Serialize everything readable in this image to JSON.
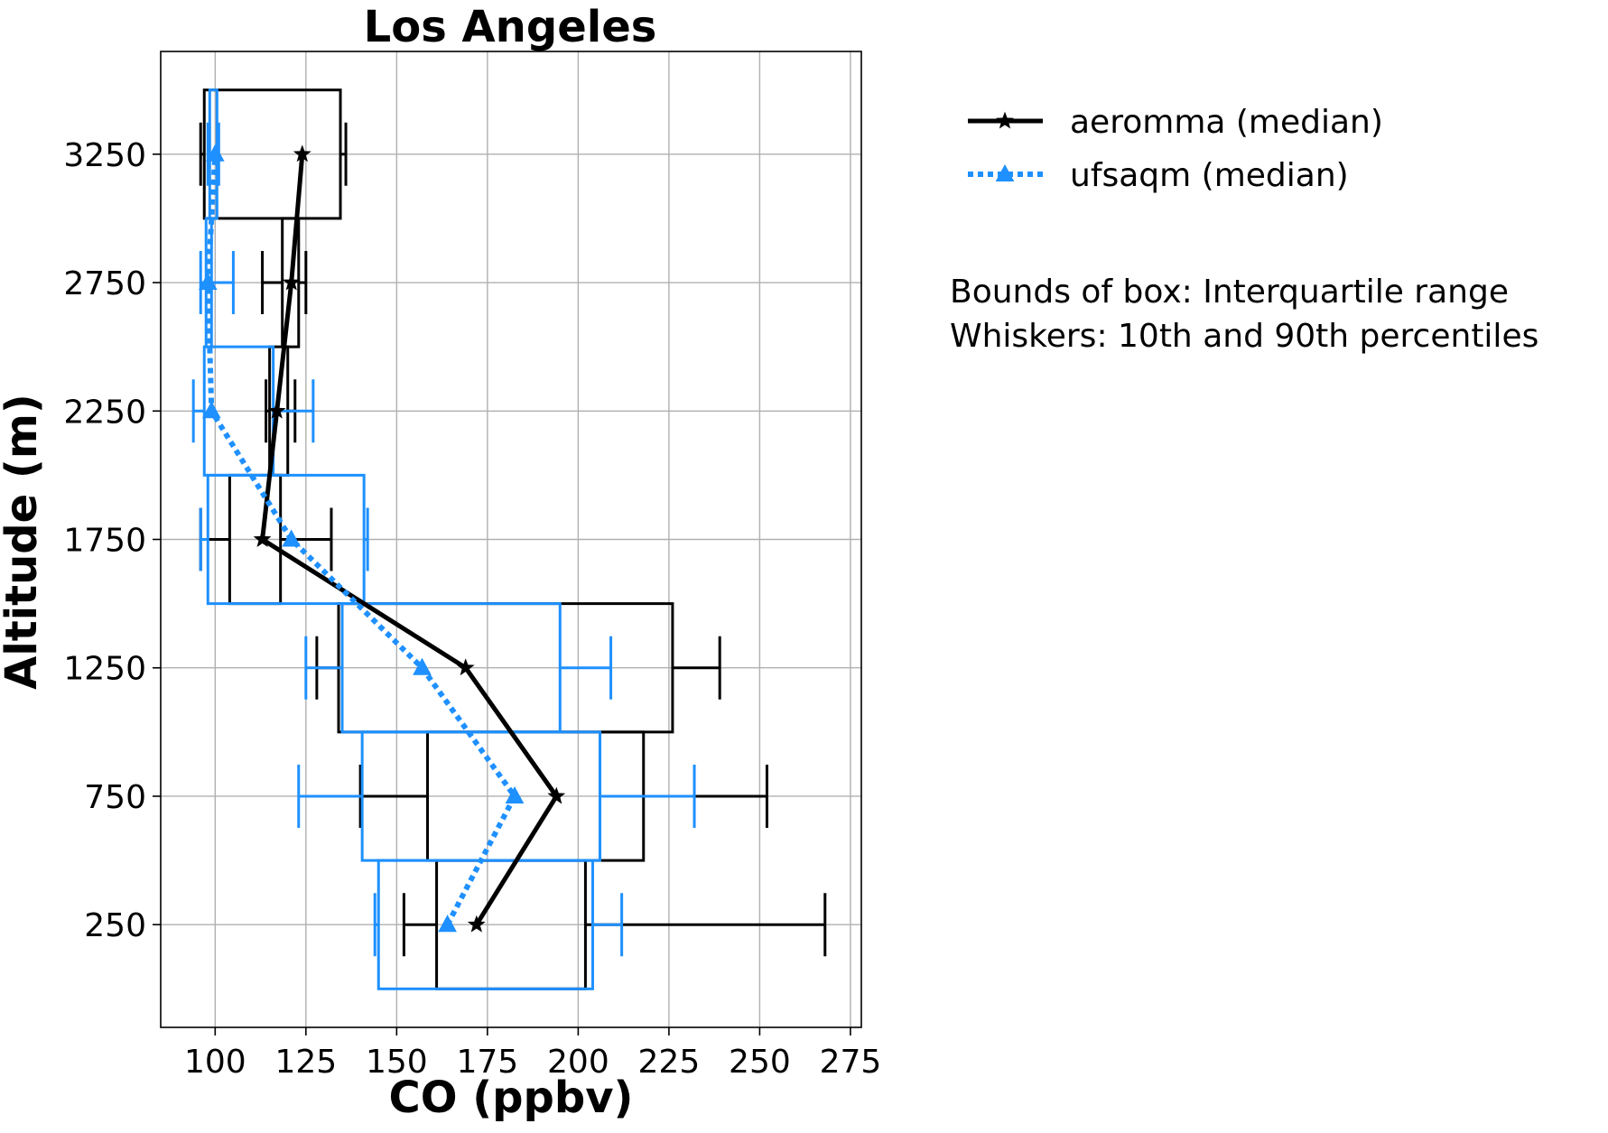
{
  "chart_data": {
    "type": "box",
    "title": "Los Angeles",
    "xlabel": "CO (ppbv)",
    "ylabel": "Altitude (m)",
    "xlim": [
      85,
      278
    ],
    "ylim": [
      -150,
      3650
    ],
    "xticks": [
      100,
      125,
      150,
      175,
      200,
      225,
      250,
      275
    ],
    "yticks": [
      250,
      750,
      1250,
      1750,
      2250,
      2750,
      3250
    ],
    "grid": true,
    "legend_position": "upper-right-outside",
    "notes": [
      "Bounds of box: Interquartile range",
      "Whiskers: 10th and 90th percentiles"
    ],
    "series": [
      {
        "name": "aeromma (median)",
        "color": "#000000",
        "marker": "star",
        "line_style": "solid",
        "bins": [
          {
            "altitude": 250,
            "p10": 152,
            "q1": 161,
            "median": 172,
            "q3": 202,
            "p90": 268
          },
          {
            "altitude": 750,
            "p10": 140,
            "q1": 158.5,
            "median": 194,
            "q3": 218,
            "p90": 252
          },
          {
            "altitude": 1250,
            "p10": 128,
            "q1": 134,
            "median": 169,
            "q3": 226,
            "p90": 239
          },
          {
            "altitude": 1750,
            "p10": 96,
            "q1": 104,
            "median": 113,
            "q3": 118,
            "p90": 132
          },
          {
            "altitude": 2250,
            "p10": 114,
            "q1": 115,
            "median": 117,
            "q3": 120,
            "p90": 122
          },
          {
            "altitude": 2750,
            "p10": 113,
            "q1": 118.5,
            "median": 121,
            "q3": 123,
            "p90": 125
          },
          {
            "altitude": 3250,
            "p10": 96,
            "q1": 97,
            "median": 124,
            "q3": 134.5,
            "p90": 136
          }
        ]
      },
      {
        "name": "ufsaqm (median)",
        "color": "#1e90ff",
        "marker": "triangle",
        "line_style": "dotted",
        "bins": [
          {
            "altitude": 250,
            "p10": 144,
            "q1": 145,
            "median": 164,
            "q3": 204,
            "p90": 212
          },
          {
            "altitude": 750,
            "p10": 123,
            "q1": 140.5,
            "median": 182.5,
            "q3": 206,
            "p90": 232
          },
          {
            "altitude": 1250,
            "p10": 125,
            "q1": 135,
            "median": 157,
            "q3": 195,
            "p90": 209
          },
          {
            "altitude": 1750,
            "p10": 96,
            "q1": 98,
            "median": 121,
            "q3": 141,
            "p90": 142
          },
          {
            "altitude": 2250,
            "p10": 94,
            "q1": 97,
            "median": 99,
            "q3": 116,
            "p90": 127
          },
          {
            "altitude": 2750,
            "p10": 96,
            "q1": 97.5,
            "median": 98,
            "q3": 99,
            "p90": 105
          },
          {
            "altitude": 3250,
            "p10": 98,
            "q1": 98.5,
            "median": 100,
            "q3": 100.5,
            "p90": 101
          }
        ]
      }
    ]
  }
}
